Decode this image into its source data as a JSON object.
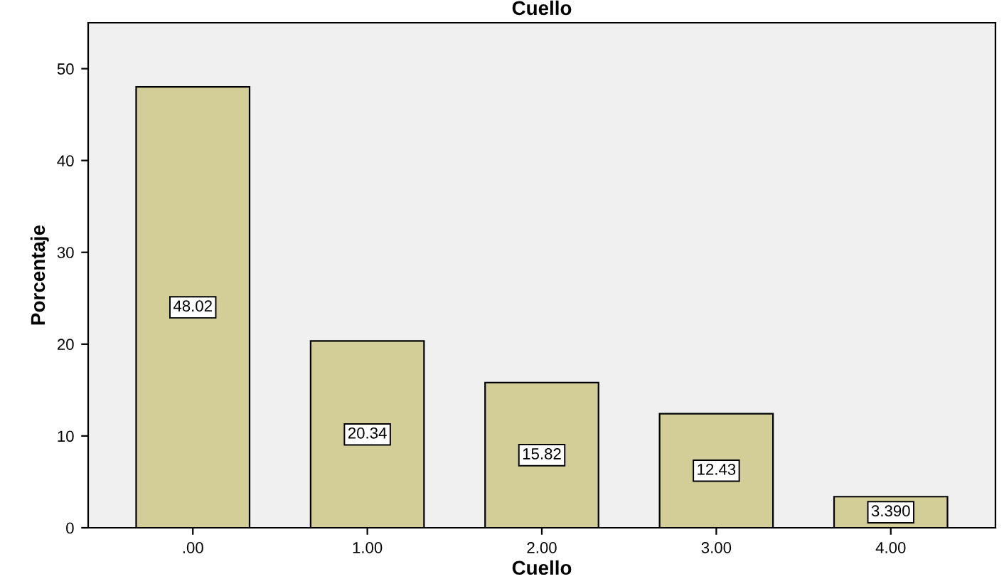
{
  "chart_data": {
    "type": "bar",
    "title": "Cuello",
    "xlabel": "Cuello",
    "ylabel": "Porcentaje",
    "categories": [
      ".00",
      "1.00",
      "2.00",
      "3.00",
      "4.00"
    ],
    "values": [
      48.02,
      20.34,
      15.82,
      12.43,
      3.39
    ],
    "value_labels": [
      "48.02",
      "20.34",
      "15.82",
      "12.43",
      "3.390"
    ],
    "color": "#d3ce98",
    "ylim": [
      0,
      55
    ],
    "yticks": [
      0,
      10,
      20,
      30,
      40,
      50
    ],
    "grid": false,
    "legend": false
  }
}
